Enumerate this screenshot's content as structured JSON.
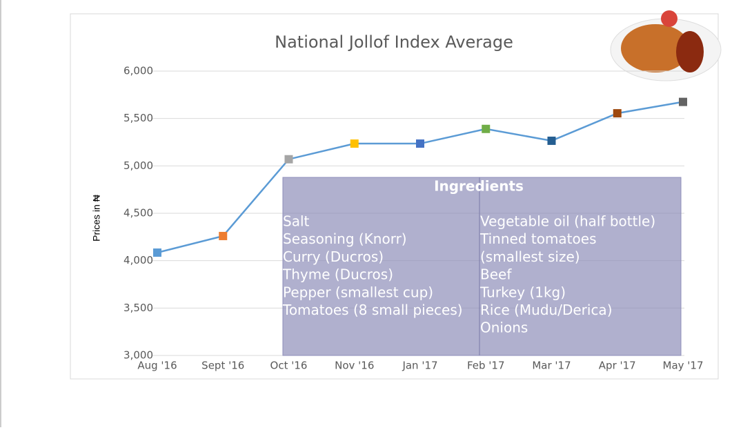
{
  "chart_data": {
    "type": "line",
    "title": "National Jollof Index Average",
    "y_label": "Prices in ₦",
    "categories": [
      "Aug '16",
      "Sept '16",
      "Oct '16",
      "Nov '16",
      "Jan '17",
      "Feb '17",
      "Mar '17",
      "Apr '17",
      "May '17"
    ],
    "series": [
      {
        "color": "#5b9bd5",
        "values": [
          4085,
          4260,
          5070,
          5235,
          5235,
          5390,
          5265,
          5555,
          5675
        ]
      }
    ],
    "marker_colors": [
      "#5b9bd5",
      "#ed7d31",
      "#a5a5a5",
      "#ffc000",
      "#4472c4",
      "#70ad47",
      "#255e91",
      "#9e480e",
      "#636363"
    ],
    "ylim": [
      3000,
      6000
    ],
    "yticks": [
      {
        "value": 3000,
        "label": "3,000"
      },
      {
        "value": 3500,
        "label": "3,500"
      },
      {
        "value": 4000,
        "label": "4,000"
      },
      {
        "value": 4500,
        "label": "4,500"
      },
      {
        "value": 5000,
        "label": "5,000"
      },
      {
        "value": 5500,
        "label": "5,500"
      },
      {
        "value": 6000,
        "label": "6,000"
      }
    ],
    "grid": true
  },
  "ingredients": {
    "title": "Ingredients",
    "left": [
      "Salt",
      "Seasoning (Knorr)",
      "Curry (Ducros)",
      "Thyme (Ducros)",
      "Pepper (smallest cup)",
      "Tomatoes (8 small pieces)"
    ],
    "right": [
      "Vegetable oil (half bottle)",
      "Tinned tomatoes",
      "(smallest size)",
      "Beef",
      "Turkey (1kg)",
      "Rice (Mudu/Derica)",
      "Onions"
    ]
  }
}
